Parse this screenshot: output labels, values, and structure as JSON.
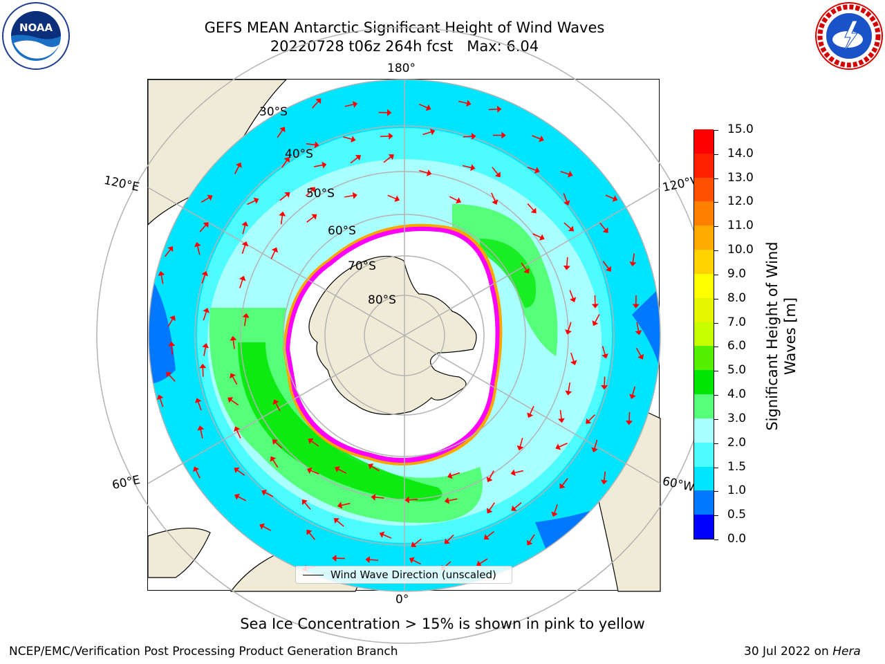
{
  "title": {
    "line1": "GEFS MEAN Antarctic Significant Height of Wind Waves",
    "line2": "20220728 t06z 264h fcst   Max: 6.04"
  },
  "logos": {
    "left": "noaa-logo",
    "right": "national-weather-service-logo"
  },
  "map": {
    "projection": "south-polar-stereographic",
    "longitude_labels": [
      "180°",
      "120°E",
      "120°W",
      "60°E",
      "60°W",
      "0°"
    ],
    "latitude_labels": [
      "30°S",
      "40°S",
      "50°S",
      "60°S",
      "70°S",
      "80°S"
    ],
    "legend_label": "Wind Wave Direction (unscaled)",
    "arrow_color": "#ff0000",
    "land_color": "#efebd7",
    "ice_edge_colors": [
      "#ff00ff",
      "#ffa500"
    ]
  },
  "colorbar": {
    "title": "Significant Height of Wind\nWaves [m]",
    "ticks": [
      "0.0",
      "0.5",
      "1.0",
      "1.5",
      "2.0",
      "3.0",
      "4.0",
      "5.0",
      "6.0",
      "7.0",
      "8.0",
      "9.0",
      "10.0",
      "11.0",
      "12.0",
      "13.0",
      "14.0",
      "15.0"
    ],
    "colors": [
      "#0000ff",
      "#0077ff",
      "#00e5ff",
      "#4dfcff",
      "#aaffff",
      "#55ff7a",
      "#00e600",
      "#55ef00",
      "#c8ff00",
      "#e6f500",
      "#ffff00",
      "#ffd200",
      "#ffaa00",
      "#ff7f00",
      "#ff5000",
      "#ff2000",
      "#ff0000"
    ]
  },
  "chart_data": {
    "type": "heatmap",
    "field": "Significant Height of Wind Waves",
    "units": "m",
    "run": "20220728 t06z",
    "forecast_hour": "264h",
    "max_value": 6.04,
    "range": [
      0.0,
      15.0
    ]
  },
  "bottom_note": "Sea Ice Concentration > 15% is shown in pink to yellow",
  "footer": {
    "left": "NCEP/EMC/Verification Post Processing Product Generation Branch",
    "right_date": "30 Jul 2022 on",
    "right_model": "Hera"
  }
}
